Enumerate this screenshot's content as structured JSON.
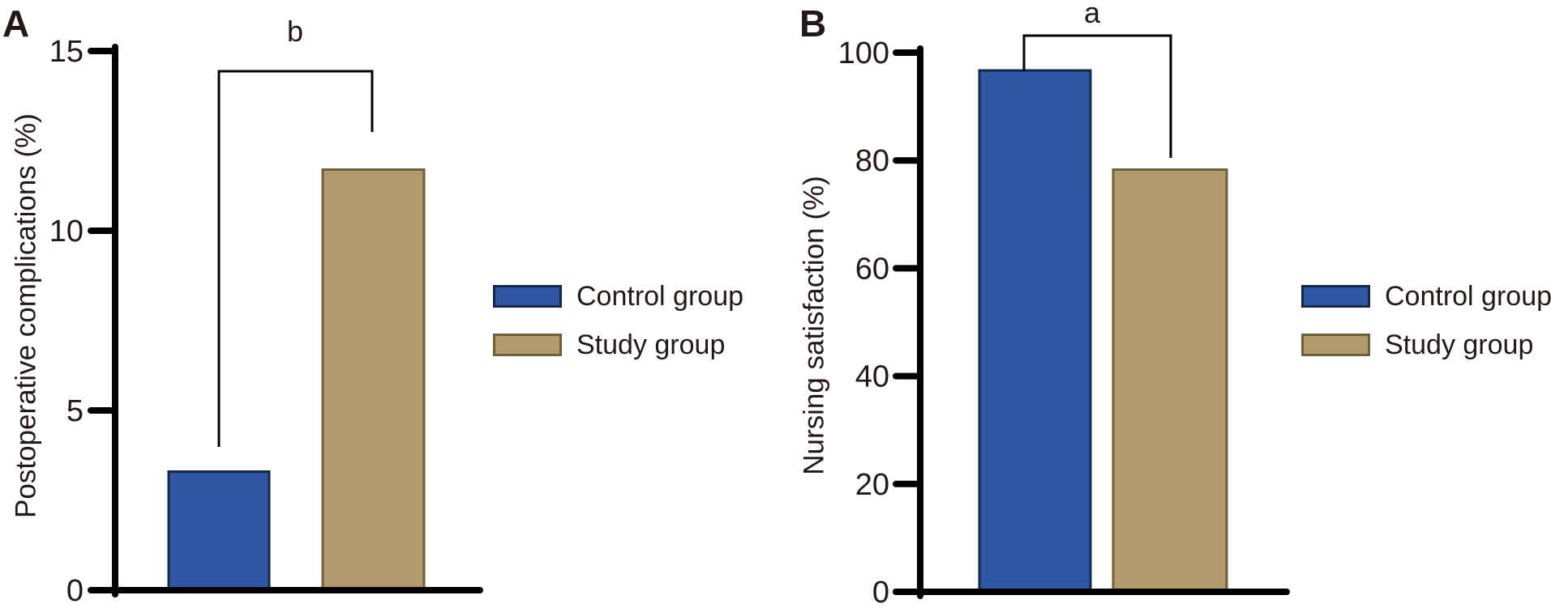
{
  "figure": {
    "background": "#FFFFFF",
    "text_color": "#231815",
    "axis_color": "#000000",
    "bracket_color": "#000000",
    "panels": [
      {
        "letter": "A",
        "ylabel": "Postoperative complications (%)",
        "sig_label": "b"
      },
      {
        "letter": "B",
        "ylabel": "Nursing satisfaction (%)",
        "sig_label": "a"
      }
    ]
  },
  "legend": {
    "items": [
      {
        "label": "Control group",
        "fill": "#2F57A4",
        "border": "#15294B"
      },
      {
        "label": "Study group",
        "fill": "#B29A6D",
        "border": "#6E6139"
      }
    ]
  },
  "chart_data": [
    {
      "panel": "A",
      "type": "bar",
      "title": "",
      "xlabel": "",
      "ylabel": "Postoperative complications (%)",
      "categories": [
        "Control group",
        "Study group"
      ],
      "values": [
        3.3,
        11.7
      ],
      "ylim": [
        0,
        15
      ],
      "yticks": [
        0,
        5,
        10,
        15
      ],
      "grid": false,
      "legend_labels": [
        "Control group",
        "Study group"
      ],
      "legend_position": "right",
      "annotation": {
        "label": "b",
        "between": [
          "Control group",
          "Study group"
        ]
      }
    },
    {
      "panel": "B",
      "type": "bar",
      "title": "",
      "xlabel": "",
      "ylabel": "Nursing satisfaction (%)",
      "categories": [
        "Control group",
        "Study group"
      ],
      "values": [
        96.7,
        78.3
      ],
      "ylim": [
        0,
        100
      ],
      "yticks": [
        0,
        20,
        40,
        60,
        80,
        100
      ],
      "grid": false,
      "legend_labels": [
        "Control group",
        "Study group"
      ],
      "legend_position": "right",
      "annotation": {
        "label": "a",
        "between": [
          "Control group",
          "Study group"
        ]
      }
    }
  ]
}
